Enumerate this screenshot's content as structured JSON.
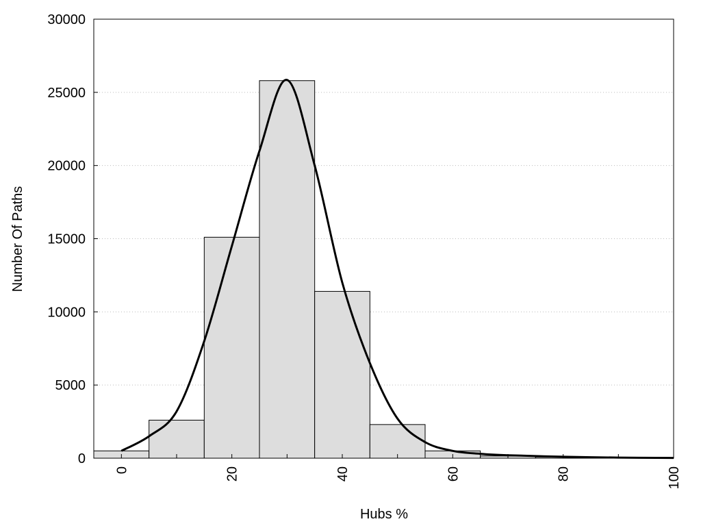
{
  "chart_data": {
    "type": "bar",
    "title": "",
    "xlabel": "Hubs %",
    "ylabel": "Number Of Paths",
    "xlim": [
      -5,
      100
    ],
    "ylim": [
      0,
      30000
    ],
    "x_ticks": [
      "0",
      "20",
      "40",
      "60",
      "80",
      "100"
    ],
    "y_ticks": [
      "0",
      "5000",
      "10000",
      "15000",
      "20000",
      "25000",
      "30000"
    ],
    "grid": true,
    "bin_width": 10,
    "categories": [
      0,
      10,
      20,
      30,
      40,
      50,
      60,
      70,
      80,
      90
    ],
    "values": [
      500,
      2600,
      15100,
      25800,
      11400,
      2300,
      500,
      150,
      80,
      40
    ],
    "fit_curve": {
      "x": [
        0,
        5,
        10,
        15,
        20,
        25,
        30,
        35,
        40,
        45,
        50,
        55,
        60,
        65,
        70,
        80,
        90,
        100
      ],
      "y": [
        500,
        1500,
        3200,
        8000,
        14500,
        21000,
        25850,
        20000,
        12000,
        6500,
        2700,
        1100,
        500,
        300,
        200,
        100,
        40,
        20
      ]
    },
    "colors": {
      "bar_fill": "#dddddd",
      "bar_stroke": "#000000",
      "curve": "#000000",
      "grid": "#bbbbbb"
    }
  }
}
